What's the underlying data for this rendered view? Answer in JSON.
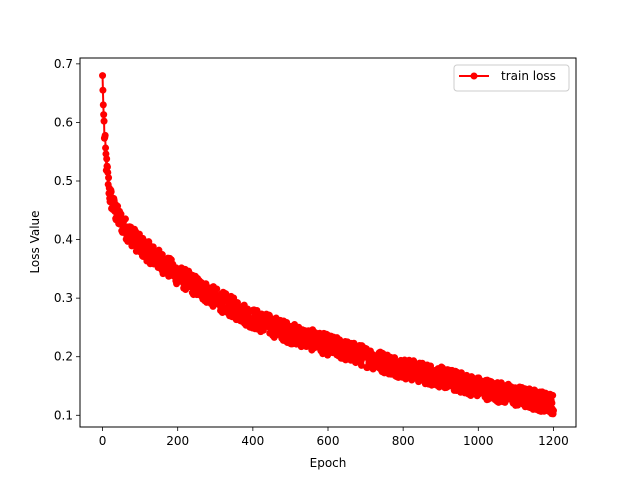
{
  "chart_data": {
    "type": "line",
    "title": "",
    "xlabel": "Epoch",
    "ylabel": "Loss Value",
    "xlim": [
      -60,
      1260
    ],
    "ylim": [
      0.08,
      0.71
    ],
    "xticks": [
      0,
      200,
      400,
      600,
      800,
      1000,
      1200
    ],
    "yticks": [
      0.1,
      0.2,
      0.3,
      0.4,
      0.5,
      0.6,
      0.7
    ],
    "grid": false,
    "legend_position": "top-right",
    "series": [
      {
        "name": "train loss",
        "color": "#ff0000",
        "marker": "circle",
        "x_start": 0,
        "x_step": 1,
        "count": 1201,
        "trend_x": [
          0,
          2,
          5,
          10,
          15,
          20,
          30,
          40,
          60,
          80,
          100,
          150,
          200,
          250,
          300,
          400,
          500,
          600,
          700,
          800,
          900,
          1000,
          1100,
          1200
        ],
        "trend_y": [
          0.68,
          0.63,
          0.58,
          0.53,
          0.5,
          0.475,
          0.455,
          0.44,
          0.42,
          0.405,
          0.39,
          0.365,
          0.34,
          0.32,
          0.3,
          0.265,
          0.24,
          0.22,
          0.2,
          0.18,
          0.165,
          0.148,
          0.133,
          0.12
        ],
        "noise_amplitude": 0.018,
        "last_value": 0.108
      }
    ]
  }
}
